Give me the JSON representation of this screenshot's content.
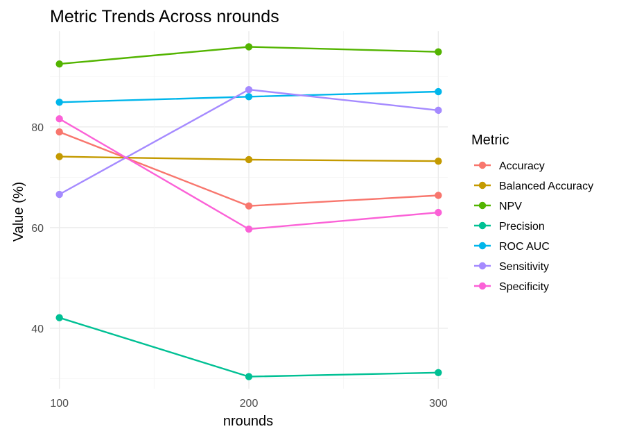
{
  "chart_data": {
    "type": "line",
    "title": "Metric Trends Across nrounds",
    "xlabel": "nrounds",
    "ylabel": "Value (%)",
    "x": [
      100,
      200,
      300
    ],
    "xticks": [
      100,
      200,
      300
    ],
    "yticks": [
      40,
      60,
      80
    ],
    "xlim": [
      95,
      305
    ],
    "ylim": [
      28,
      99
    ],
    "grid": true,
    "legend": {
      "title": "Metric",
      "position": "right"
    },
    "series": [
      {
        "name": "Accuracy",
        "color": "#F8766D",
        "values": [
          79.0,
          64.3,
          66.4
        ]
      },
      {
        "name": "Balanced Accuracy",
        "color": "#C49A00",
        "values": [
          74.1,
          73.5,
          73.2
        ]
      },
      {
        "name": "NPV",
        "color": "#53B400",
        "values": [
          92.5,
          95.9,
          94.9
        ]
      },
      {
        "name": "Precision",
        "color": "#00C094",
        "values": [
          42.1,
          30.4,
          31.2
        ]
      },
      {
        "name": "ROC AUC",
        "color": "#00B6EB",
        "values": [
          84.9,
          86.0,
          87.0
        ]
      },
      {
        "name": "Sensitivity",
        "color": "#A58AFF",
        "values": [
          66.6,
          87.4,
          83.3
        ]
      },
      {
        "name": "Specificity",
        "color": "#FB61D7",
        "values": [
          81.6,
          59.7,
          63.0
        ]
      }
    ]
  }
}
